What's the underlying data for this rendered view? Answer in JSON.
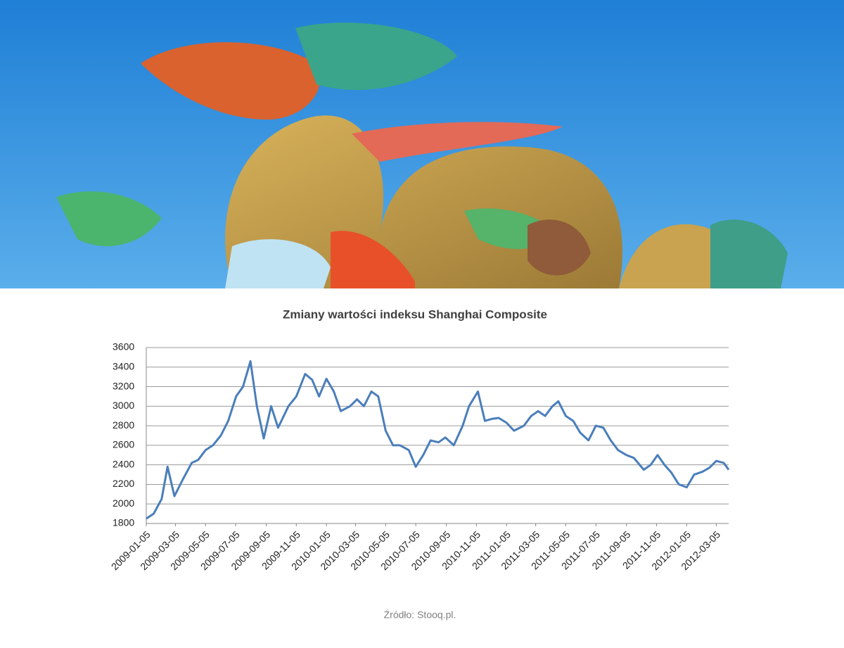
{
  "chart_data": {
    "type": "line",
    "title": "Zmiany wartości indeksu Shanghai Composite",
    "source": "Źródło: Stooq.pl.",
    "x": [
      "2009-01-05",
      "2009-01-20",
      "2009-02-05",
      "2009-02-17",
      "2009-03-03",
      "2009-03-20",
      "2009-04-07",
      "2009-04-20",
      "2009-05-05",
      "2009-05-20",
      "2009-06-05",
      "2009-06-20",
      "2009-07-06",
      "2009-07-20",
      "2009-08-04",
      "2009-08-17",
      "2009-08-31",
      "2009-09-15",
      "2009-09-29",
      "2009-10-20",
      "2009-11-05",
      "2009-11-23",
      "2009-12-07",
      "2009-12-21",
      "2010-01-05",
      "2010-01-20",
      "2010-02-03",
      "2010-02-22",
      "2010-03-08",
      "2010-03-22",
      "2010-04-06",
      "2010-04-20",
      "2010-05-05",
      "2010-05-20",
      "2010-06-03",
      "2010-06-21",
      "2010-07-05",
      "2010-07-20",
      "2010-08-04",
      "2010-08-20",
      "2010-09-03",
      "2010-09-20",
      "2010-10-08",
      "2010-10-21",
      "2010-11-08",
      "2010-11-22",
      "2010-12-06",
      "2010-12-20",
      "2011-01-05",
      "2011-01-20",
      "2011-02-09",
      "2011-02-24",
      "2011-03-10",
      "2011-03-24",
      "2011-04-08",
      "2011-04-20",
      "2011-05-05",
      "2011-05-20",
      "2011-06-03",
      "2011-06-20",
      "2011-07-05",
      "2011-07-20",
      "2011-08-04",
      "2011-08-19",
      "2011-09-05",
      "2011-09-20",
      "2011-10-10",
      "2011-10-24",
      "2011-11-07",
      "2011-11-21",
      "2011-12-05",
      "2011-12-20",
      "2012-01-05",
      "2012-01-20",
      "2012-02-06",
      "2012-02-20",
      "2012-03-05",
      "2012-03-20",
      "2012-03-30"
    ],
    "series": [
      {
        "color": "#4a7ebb",
        "values": [
          1850,
          1900,
          2050,
          2380,
          2080,
          2250,
          2420,
          2450,
          2550,
          2600,
          2700,
          2850,
          3100,
          3200,
          3460,
          3000,
          2670,
          3000,
          2780,
          3000,
          3100,
          3330,
          3270,
          3100,
          3280,
          3150,
          2950,
          3000,
          3070,
          3000,
          3150,
          3100,
          2750,
          2600,
          2600,
          2550,
          2380,
          2500,
          2650,
          2630,
          2680,
          2600,
          2800,
          3000,
          3150,
          2850,
          2870,
          2880,
          2830,
          2750,
          2800,
          2900,
          2950,
          2900,
          3000,
          3050,
          2900,
          2850,
          2730,
          2650,
          2800,
          2780,
          2650,
          2550,
          2500,
          2470,
          2350,
          2400,
          2500,
          2400,
          2320,
          2200,
          2170,
          2300,
          2330,
          2370,
          2440,
          2420,
          2350
        ]
      }
    ],
    "xticks": [
      "2009-01-05",
      "2009-03-05",
      "2009-05-05",
      "2009-07-05",
      "2009-09-05",
      "2009-11-05",
      "2010-01-05",
      "2010-03-05",
      "2010-05-05",
      "2010-07-05",
      "2010-09-05",
      "2010-11-05",
      "2011-01-05",
      "2011-03-05",
      "2011-05-05",
      "2011-07-05",
      "2011-09-05",
      "2011-11-05",
      "2012-01-05",
      "2012-03-05"
    ],
    "ylim": [
      1800,
      3600
    ],
    "yticks": [
      1800,
      2000,
      2200,
      2400,
      2600,
      2800,
      3000,
      3200,
      3400,
      3600
    ],
    "grid": true
  }
}
